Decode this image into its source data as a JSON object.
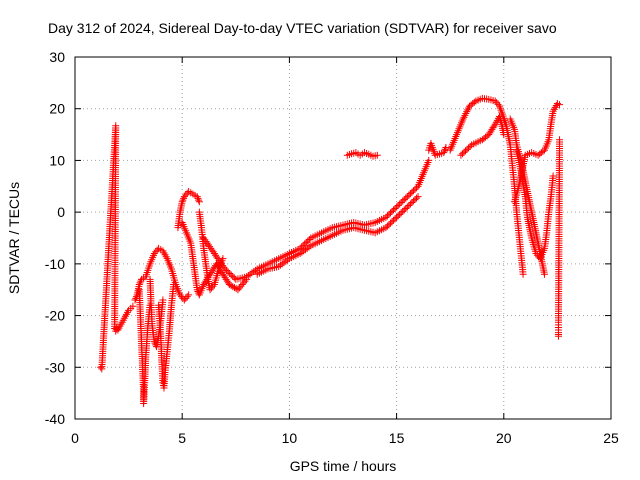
{
  "chart_data": {
    "type": "scatter",
    "title": "Day 312 of 2024, Sidereal Day-to-day VTEC variation (SDTVAR) for receiver savo",
    "xlabel": "GPS time / hours",
    "ylabel": "SDTVAR / TECUs",
    "xlim": [
      0,
      25
    ],
    "ylim": [
      -40,
      30
    ],
    "xticks": [
      0,
      5,
      10,
      15,
      20,
      25
    ],
    "yticks": [
      -40,
      -30,
      -20,
      -10,
      0,
      10,
      20,
      30
    ],
    "grid": true,
    "marker": "+",
    "color": "#ff0000",
    "series": [
      {
        "name": "early-fragments",
        "points": [
          [
            1.2,
            -30
          ],
          [
            1.25,
            -30.3
          ],
          [
            1.9,
            16.7
          ],
          [
            1.85,
            -22.5
          ],
          [
            1.9,
            -23
          ],
          [
            1.95,
            -22.3
          ],
          [
            2.0,
            -22.8
          ],
          [
            2.5,
            -19
          ],
          [
            2.6,
            -18.6
          ],
          [
            2.7,
            -18.2
          ]
        ]
      },
      {
        "name": "arc-a",
        "points": [
          [
            2.8,
            -17
          ],
          [
            2.9,
            -16
          ],
          [
            3.0,
            -14
          ],
          [
            3.1,
            -13
          ],
          [
            3.3,
            -12.5
          ],
          [
            3.5,
            -10
          ],
          [
            3.7,
            -8
          ],
          [
            3.9,
            -7
          ],
          [
            4.1,
            -7.5
          ],
          [
            4.3,
            -9
          ],
          [
            4.5,
            -11
          ],
          [
            4.7,
            -14
          ],
          [
            4.9,
            -16
          ],
          [
            5.1,
            -17
          ],
          [
            5.3,
            -16
          ]
        ]
      },
      {
        "name": "dip-a",
        "points": [
          [
            3.0,
            -15
          ],
          [
            3.05,
            -20
          ],
          [
            3.1,
            -25
          ],
          [
            3.15,
            -30
          ],
          [
            3.2,
            -35
          ],
          [
            3.2,
            -37
          ],
          [
            3.25,
            -33
          ],
          [
            3.3,
            -28
          ],
          [
            3.4,
            -22
          ],
          [
            3.5,
            -18
          ]
        ]
      },
      {
        "name": "dip-b",
        "points": [
          [
            3.5,
            -13
          ],
          [
            3.55,
            -18
          ],
          [
            3.6,
            -22
          ],
          [
            3.7,
            -25
          ],
          [
            3.8,
            -26
          ],
          [
            3.9,
            -24
          ],
          [
            4.0,
            -21
          ],
          [
            4.1,
            -17
          ]
        ]
      },
      {
        "name": "dip-c",
        "points": [
          [
            3.9,
            -18
          ],
          [
            4.0,
            -24
          ],
          [
            4.05,
            -29
          ],
          [
            4.1,
            -33
          ],
          [
            4.15,
            -34
          ],
          [
            4.2,
            -31
          ],
          [
            4.3,
            -27
          ],
          [
            4.4,
            -23
          ],
          [
            4.5,
            -18
          ],
          [
            4.6,
            -14
          ]
        ]
      },
      {
        "name": "arc-b",
        "points": [
          [
            4.8,
            -3
          ],
          [
            4.9,
            0
          ],
          [
            5.0,
            2
          ],
          [
            5.1,
            3
          ],
          [
            5.3,
            4
          ],
          [
            5.5,
            3.5
          ],
          [
            5.7,
            3
          ],
          [
            5.8,
            2
          ]
        ]
      },
      {
        "name": "arc-c",
        "points": [
          [
            5.0,
            -2
          ],
          [
            5.2,
            -4
          ],
          [
            5.4,
            -6
          ],
          [
            5.5,
            -9
          ],
          [
            5.6,
            -12
          ],
          [
            5.7,
            -15
          ],
          [
            5.8,
            -16
          ],
          [
            6.0,
            -14
          ],
          [
            6.3,
            -12
          ],
          [
            6.6,
            -10
          ],
          [
            6.9,
            -12
          ],
          [
            7.2,
            -14
          ],
          [
            7.6,
            -15
          ],
          [
            8.0,
            -13
          ]
        ]
      },
      {
        "name": "dip-d",
        "points": [
          [
            5.8,
            0
          ],
          [
            5.9,
            -3
          ],
          [
            6.0,
            -7
          ],
          [
            6.1,
            -10
          ],
          [
            6.2,
            -13
          ],
          [
            6.3,
            -15
          ],
          [
            6.5,
            -14
          ],
          [
            6.7,
            -11
          ],
          [
            6.9,
            -9
          ]
        ]
      },
      {
        "name": "band-main",
        "points": [
          [
            6.0,
            -5
          ],
          [
            6.5,
            -8
          ],
          [
            7.0,
            -11
          ],
          [
            7.5,
            -13
          ],
          [
            8.0,
            -12.5
          ],
          [
            8.5,
            -11
          ],
          [
            9.0,
            -10
          ],
          [
            9.5,
            -9
          ],
          [
            10.0,
            -8
          ],
          [
            10.5,
            -7
          ],
          [
            11.0,
            -5
          ],
          [
            11.5,
            -4
          ],
          [
            12.0,
            -3
          ],
          [
            12.5,
            -2.5
          ],
          [
            13.0,
            -2
          ],
          [
            13.5,
            -2.5
          ],
          [
            14.0,
            -2
          ],
          [
            14.5,
            -1
          ],
          [
            15.0,
            1
          ],
          [
            15.5,
            3
          ],
          [
            16.0,
            5
          ],
          [
            16.3,
            8
          ],
          [
            16.5,
            10
          ]
        ]
      },
      {
        "name": "band-lower",
        "points": [
          [
            8.5,
            -12
          ],
          [
            9.0,
            -11
          ],
          [
            9.5,
            -10.5
          ],
          [
            10.0,
            -9
          ],
          [
            10.5,
            -8
          ],
          [
            11.0,
            -6.5
          ],
          [
            11.5,
            -5.5
          ],
          [
            12.0,
            -4.5
          ],
          [
            12.5,
            -3.5
          ],
          [
            13.0,
            -3
          ],
          [
            13.5,
            -3.5
          ],
          [
            14.0,
            -4
          ],
          [
            14.5,
            -3
          ],
          [
            15.0,
            -1
          ],
          [
            15.5,
            1
          ],
          [
            16.0,
            3
          ]
        ]
      },
      {
        "name": "mid-cluster",
        "points": [
          [
            12.7,
            11
          ],
          [
            12.9,
            11.3
          ],
          [
            13.1,
            11.5
          ],
          [
            13.3,
            11
          ],
          [
            13.5,
            11.5
          ],
          [
            13.7,
            11.2
          ],
          [
            13.9,
            10.8
          ],
          [
            14.1,
            11
          ]
        ]
      },
      {
        "name": "right-scatter",
        "points": [
          [
            16.5,
            12
          ],
          [
            16.6,
            13.3
          ],
          [
            16.8,
            11
          ],
          [
            17.2,
            11.5
          ],
          [
            17.3,
            12.5
          ]
        ]
      },
      {
        "name": "arc-d",
        "points": [
          [
            17.5,
            12
          ],
          [
            17.8,
            15
          ],
          [
            18.1,
            18
          ],
          [
            18.4,
            20.5
          ],
          [
            18.7,
            21.5
          ],
          [
            19.0,
            22
          ],
          [
            19.3,
            21.8
          ],
          [
            19.6,
            21.5
          ],
          [
            19.8,
            20.5
          ],
          [
            20.1,
            17
          ],
          [
            20.3,
            13
          ],
          [
            20.4,
            9
          ],
          [
            20.5,
            5
          ],
          [
            20.6,
            0
          ],
          [
            20.7,
            -4
          ],
          [
            20.8,
            -8
          ],
          [
            20.9,
            -12
          ]
        ]
      },
      {
        "name": "arc-e",
        "points": [
          [
            18.0,
            11
          ],
          [
            18.5,
            13
          ],
          [
            19.0,
            14
          ],
          [
            19.3,
            15
          ],
          [
            19.6,
            17
          ],
          [
            19.8,
            18.5
          ],
          [
            19.9,
            17
          ],
          [
            20.0,
            15
          ]
        ]
      },
      {
        "name": "arc-f",
        "points": [
          [
            20.3,
            18
          ],
          [
            20.5,
            16
          ],
          [
            20.6,
            13
          ],
          [
            20.8,
            10
          ],
          [
            21.0,
            6
          ],
          [
            21.2,
            2
          ],
          [
            21.4,
            -2
          ],
          [
            21.6,
            -6
          ],
          [
            21.8,
            -10
          ],
          [
            21.9,
            -12
          ]
        ]
      },
      {
        "name": "arc-g",
        "points": [
          [
            20.6,
            12
          ],
          [
            20.8,
            8
          ],
          [
            21.0,
            3
          ],
          [
            21.1,
            -1
          ],
          [
            21.3,
            -5
          ],
          [
            21.5,
            -8
          ],
          [
            21.7,
            -9
          ],
          [
            21.9,
            -7
          ],
          [
            22.0,
            -4
          ],
          [
            22.1,
            0
          ],
          [
            22.2,
            3
          ],
          [
            22.3,
            7
          ]
        ]
      },
      {
        "name": "arc-h",
        "points": [
          [
            20.5,
            2
          ],
          [
            20.7,
            5
          ],
          [
            20.9,
            9
          ],
          [
            21.0,
            11
          ],
          [
            21.3,
            11.5
          ],
          [
            21.6,
            11
          ],
          [
            21.9,
            12
          ],
          [
            22.1,
            14
          ],
          [
            22.2,
            17
          ],
          [
            22.3,
            19.5
          ],
          [
            22.5,
            21
          ],
          [
            22.6,
            20.8
          ]
        ]
      },
      {
        "name": "late-fragments",
        "points": [
          [
            22.6,
            14
          ],
          [
            22.55,
            -21.3
          ],
          [
            22.55,
            -22.3
          ],
          [
            22.55,
            -23.3
          ],
          [
            22.55,
            -24
          ]
        ]
      }
    ]
  }
}
